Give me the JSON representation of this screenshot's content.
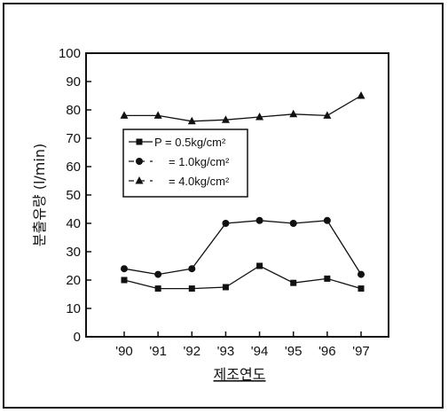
{
  "chart_data": {
    "type": "line",
    "xlabel": "제조연도",
    "ylabel": "분출유량 (l/min)",
    "categories": [
      "'90",
      "'91",
      "'92",
      "'93",
      "'94",
      "'95",
      "'96",
      "'97"
    ],
    "ylim": [
      0,
      100
    ],
    "yticks": [
      0,
      10,
      20,
      30,
      40,
      50,
      60,
      70,
      80,
      90,
      100
    ],
    "grid": false,
    "legend_position": "left, mid-height",
    "series": [
      {
        "name": "P = 0.5kg/cm²",
        "marker": "square",
        "values": [
          20,
          17,
          17,
          17.5,
          25,
          19,
          20.5,
          17
        ]
      },
      {
        "name": "= 1.0kg/cm²",
        "marker": "circle",
        "values": [
          24,
          22,
          24,
          40,
          41,
          40,
          41,
          22
        ]
      },
      {
        "name": "= 4.0kg/cm²",
        "marker": "triangle",
        "values": [
          78,
          78,
          76,
          76.5,
          77.5,
          78.5,
          78,
          85
        ]
      }
    ]
  }
}
